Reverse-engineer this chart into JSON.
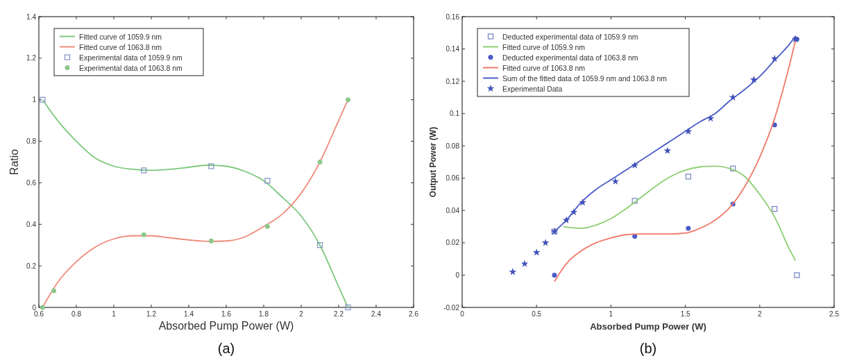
{
  "chart_data": [
    {
      "type": "line",
      "title": "(a)",
      "xlabel": "Absorbed Pump Power (W)",
      "ylabel": "Ratio",
      "xlim": [
        0.6,
        2.6
      ],
      "xticks": [
        0.6,
        0.8,
        1,
        1.2,
        1.4,
        1.6,
        1.8,
        2,
        2.2,
        2.4,
        2.6
      ],
      "ylim": [
        0,
        1.4
      ],
      "yticks": [
        0,
        0.2,
        0.4,
        0.6,
        0.8,
        1,
        1.2,
        1.4
      ],
      "legend": "top left",
      "grid": false,
      "series": [
        {
          "name": "Fitted curve of 1059.9 nm",
          "color": "#7cc87c",
          "x": [
            0.62,
            0.7,
            0.8,
            0.9,
            1.0,
            1.1,
            1.2,
            1.3,
            1.4,
            1.5,
            1.6,
            1.7,
            1.8,
            1.9,
            2.0,
            2.1,
            2.2,
            2.25
          ],
          "values": [
            1.0,
            0.9,
            0.8,
            0.72,
            0.68,
            0.665,
            0.66,
            0.665,
            0.675,
            0.685,
            0.68,
            0.655,
            0.61,
            0.53,
            0.44,
            0.3,
            0.1,
            0.0
          ]
        },
        {
          "name": "Fitted curve of 1063.8 nm",
          "color": "#f08a7a",
          "x": [
            0.62,
            0.7,
            0.8,
            0.9,
            1.0,
            1.1,
            1.2,
            1.3,
            1.4,
            1.5,
            1.6,
            1.7,
            1.8,
            1.9,
            2.0,
            2.1,
            2.2,
            2.25
          ],
          "values": [
            0.0,
            0.12,
            0.22,
            0.29,
            0.33,
            0.345,
            0.345,
            0.335,
            0.325,
            0.318,
            0.32,
            0.34,
            0.39,
            0.45,
            0.55,
            0.7,
            0.9,
            1.0
          ]
        },
        {
          "name": "Experimental data of 1059.9 nm",
          "type": "scatter",
          "marker": "square",
          "color": "#7f8fc4",
          "x": [
            0.62,
            1.16,
            1.52,
            1.82,
            2.1,
            2.25
          ],
          "values": [
            1.0,
            0.66,
            0.68,
            0.61,
            0.3,
            0.0
          ]
        },
        {
          "name": "Experimental data of 1063.8 nm",
          "type": "scatter",
          "marker": "circle",
          "color": "#8cc88c",
          "x": [
            0.62,
            0.68,
            1.16,
            1.52,
            1.82,
            2.1,
            2.25
          ],
          "values": [
            0.0,
            0.08,
            0.35,
            0.32,
            0.39,
            0.7,
            1.0
          ]
        }
      ]
    },
    {
      "type": "line",
      "title": "(b)",
      "xlabel": "Absorbed Pump Power (W)",
      "ylabel": "Output Power (W)",
      "xlim": [
        0,
        2.5
      ],
      "xticks": [
        0,
        0.5,
        1,
        1.5,
        2,
        2.5
      ],
      "ylim": [
        -0.02,
        0.16
      ],
      "yticks": [
        -0.02,
        0,
        0.02,
        0.04,
        0.06,
        0.08,
        0.1,
        0.12,
        0.14,
        0.16
      ],
      "legend": "top left",
      "grid": false,
      "series": [
        {
          "name": "Deducted experimental data of 1059.9 nm",
          "type": "scatter",
          "marker": "square",
          "color": "#6f80c4",
          "x": [
            0.62,
            1.16,
            1.52,
            1.82,
            2.1,
            2.25
          ],
          "values": [
            0.027,
            0.046,
            0.061,
            0.066,
            0.041,
            0.0
          ]
        },
        {
          "name": "Fitted curve of 1059.9 nm",
          "color": "#8ccf70",
          "x": [
            0.68,
            0.8,
            0.9,
            1.0,
            1.1,
            1.2,
            1.3,
            1.4,
            1.5,
            1.6,
            1.7,
            1.8,
            1.9,
            2.0,
            2.1,
            2.2,
            2.24
          ],
          "values": [
            0.03,
            0.029,
            0.031,
            0.035,
            0.041,
            0.048,
            0.055,
            0.061,
            0.065,
            0.067,
            0.0675,
            0.066,
            0.061,
            0.05,
            0.036,
            0.016,
            0.009
          ]
        },
        {
          "name": "Deducted experimental data of 1063.8 nm",
          "type": "scatter",
          "marker": "circle",
          "color": "#4a5bc8",
          "x": [
            0.62,
            1.16,
            1.52,
            1.82,
            2.1,
            2.25
          ],
          "values": [
            0.0,
            0.024,
            0.029,
            0.044,
            0.093,
            0.146
          ]
        },
        {
          "name": "Fitted curve of 1063.8 nm",
          "color": "#f07a6a",
          "x": [
            0.62,
            0.7,
            0.8,
            0.9,
            1.0,
            1.1,
            1.2,
            1.3,
            1.4,
            1.5,
            1.6,
            1.7,
            1.8,
            1.9,
            2.0,
            2.1,
            2.2,
            2.24
          ],
          "values": [
            -0.004,
            0.007,
            0.015,
            0.02,
            0.023,
            0.025,
            0.0255,
            0.0255,
            0.0255,
            0.026,
            0.029,
            0.034,
            0.042,
            0.055,
            0.073,
            0.097,
            0.13,
            0.145
          ]
        },
        {
          "name": "Sum of the fitted data of 1059.9 nm and 1063.8 nm",
          "color": "#4a5bc8",
          "x": [
            0.62,
            0.7,
            0.8,
            0.9,
            1.0,
            1.1,
            1.2,
            1.3,
            1.4,
            1.5,
            1.6,
            1.7,
            1.8,
            1.9,
            2.0,
            2.1,
            2.2,
            2.24
          ],
          "values": [
            0.027,
            0.034,
            0.045,
            0.053,
            0.059,
            0.065,
            0.071,
            0.077,
            0.083,
            0.089,
            0.095,
            0.1,
            0.108,
            0.115,
            0.123,
            0.133,
            0.143,
            0.148
          ]
        },
        {
          "name": "Experimental Data",
          "type": "scatter",
          "marker": "star",
          "color": "#4050b8",
          "x": [
            0.34,
            0.42,
            0.5,
            0.56,
            0.62,
            0.7,
            0.75,
            0.81,
            1.03,
            1.16,
            1.38,
            1.52,
            1.67,
            1.82,
            1.96,
            2.1,
            2.24
          ],
          "values": [
            0.002,
            0.007,
            0.014,
            0.02,
            0.027,
            0.034,
            0.039,
            0.045,
            0.058,
            0.068,
            0.077,
            0.089,
            0.097,
            0.11,
            0.121,
            0.134,
            0.146
          ]
        }
      ]
    }
  ]
}
